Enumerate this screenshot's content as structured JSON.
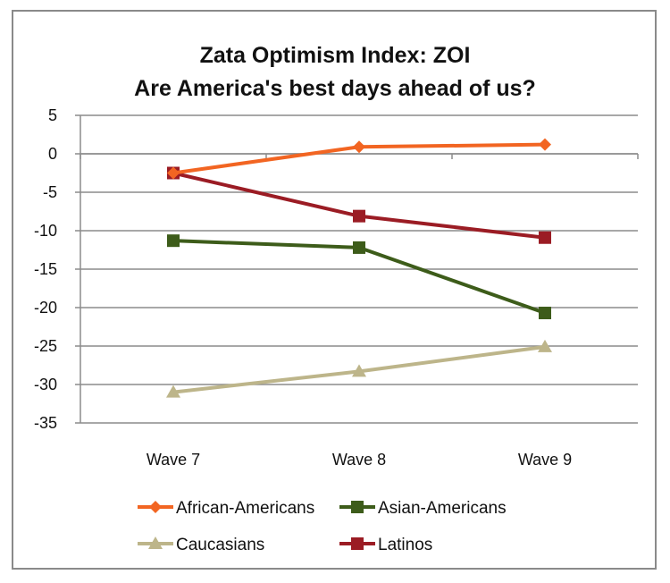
{
  "chart_data": {
    "type": "line",
    "title": [
      "Zata Optimism Index:  ZOI",
      "Are America's best days ahead of us?"
    ],
    "xlabel": "",
    "ylabel": "",
    "categories": [
      "Wave 7",
      "Wave 8",
      "Wave 9"
    ],
    "ylim": [
      -35,
      5
    ],
    "yticks": [
      5,
      0,
      -5,
      -10,
      -15,
      -20,
      -25,
      -30,
      -35
    ],
    "ytick_labels": [
      "5",
      "0",
      "-5",
      "-10",
      "-15",
      "-20",
      "-25",
      "-30",
      "-35"
    ],
    "grid": true,
    "legend_position": "bottom",
    "series": [
      {
        "name": "African-Americans",
        "values": [
          -2.5,
          0.9,
          1.2
        ],
        "color": "#f26522",
        "marker": "diamond"
      },
      {
        "name": "Asian-Americans",
        "values": [
          -11.3,
          -12.2,
          -20.7
        ],
        "color": "#3d5c1a",
        "marker": "square"
      },
      {
        "name": "Caucasians",
        "values": [
          -31.0,
          -28.3,
          -25.1
        ],
        "color": "#bdb58a",
        "marker": "triangle"
      },
      {
        "name": "Latinos",
        "values": [
          -2.5,
          -8.1,
          -10.9
        ],
        "color": "#9b1c24",
        "marker": "square"
      }
    ]
  }
}
